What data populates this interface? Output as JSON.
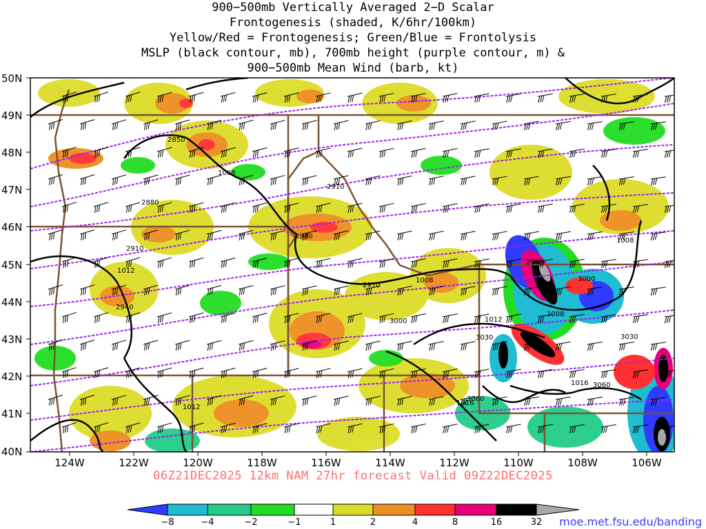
{
  "title_lines": [
    "900−500mb Vertically Averaged 2−D Scalar",
    "Frontogenesis (shaded, K/6hr/100km)",
    "Yellow/Red = Frontogenesis;  Green/Blue = Frontolysis",
    "MSLP (black contour, mb), 700mb height (purple contour, m) &",
    "900−500mb Mean Wind (barb, kt)"
  ],
  "footer": "06Z21DEC2025 12km NAM 27hr forecast Valid 09Z22DEC2025",
  "credit": "moe.met.fsu.edu/banding",
  "map": {
    "lat_labels": [
      "50N",
      "49N",
      "48N",
      "47N",
      "46N",
      "45N",
      "44N",
      "43N",
      "42N",
      "41N",
      "40N"
    ],
    "lon_labels": [
      "124W",
      "122W",
      "120W",
      "118W",
      "116W",
      "114W",
      "112W",
      "110W",
      "108W",
      "106W"
    ],
    "height_contour_labels": [
      "2850",
      "2880",
      "2910",
      "2940",
      "2970",
      "3000",
      "3030",
      "3060",
      "2910",
      "2940",
      "2970",
      "3000",
      "3030",
      "3060"
    ],
    "mslp_contour_labels": [
      "1008",
      "1012",
      "1016",
      "1008",
      "1012",
      "1008",
      "1016",
      "1012",
      "1008"
    ],
    "colors": {
      "mslp": "#000000",
      "height": "#a020f0",
      "borders": "#7a5230",
      "barbs": "#000000"
    }
  },
  "colorbar": {
    "tick_labels": [
      "−8",
      "−4",
      "−2",
      "−1",
      "1",
      "2",
      "4",
      "8",
      "16",
      "32"
    ],
    "colors": [
      "#2f3cff",
      "#1fbcd2",
      "#22cc88",
      "#22dd22",
      "#ffffff",
      "#dcdc28",
      "#ee8e1e",
      "#ff3030",
      "#e8007a",
      "#000000",
      "#a8a8a8"
    ]
  }
}
